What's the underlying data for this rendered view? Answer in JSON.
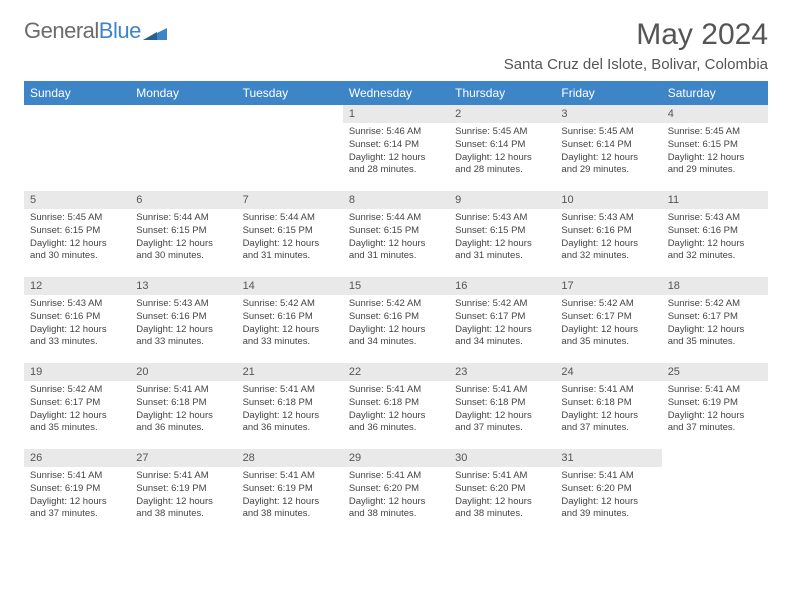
{
  "logo": {
    "text1": "General",
    "text2": "Blue"
  },
  "title": "May 2024",
  "location": "Santa Cruz del Islote, Bolivar, Colombia",
  "dayHeaders": [
    "Sunday",
    "Monday",
    "Tuesday",
    "Wednesday",
    "Thursday",
    "Friday",
    "Saturday"
  ],
  "header_bg": "#3d85c6",
  "header_fg": "#ffffff",
  "daynum_bg": "#e9e9e9",
  "text_color": "#555555",
  "weeks": [
    [
      null,
      null,
      null,
      {
        "n": "1",
        "sr": "5:46 AM",
        "ss": "6:14 PM",
        "dl": "12 hours and 28 minutes."
      },
      {
        "n": "2",
        "sr": "5:45 AM",
        "ss": "6:14 PM",
        "dl": "12 hours and 28 minutes."
      },
      {
        "n": "3",
        "sr": "5:45 AM",
        "ss": "6:14 PM",
        "dl": "12 hours and 29 minutes."
      },
      {
        "n": "4",
        "sr": "5:45 AM",
        "ss": "6:15 PM",
        "dl": "12 hours and 29 minutes."
      }
    ],
    [
      {
        "n": "5",
        "sr": "5:45 AM",
        "ss": "6:15 PM",
        "dl": "12 hours and 30 minutes."
      },
      {
        "n": "6",
        "sr": "5:44 AM",
        "ss": "6:15 PM",
        "dl": "12 hours and 30 minutes."
      },
      {
        "n": "7",
        "sr": "5:44 AM",
        "ss": "6:15 PM",
        "dl": "12 hours and 31 minutes."
      },
      {
        "n": "8",
        "sr": "5:44 AM",
        "ss": "6:15 PM",
        "dl": "12 hours and 31 minutes."
      },
      {
        "n": "9",
        "sr": "5:43 AM",
        "ss": "6:15 PM",
        "dl": "12 hours and 31 minutes."
      },
      {
        "n": "10",
        "sr": "5:43 AM",
        "ss": "6:16 PM",
        "dl": "12 hours and 32 minutes."
      },
      {
        "n": "11",
        "sr": "5:43 AM",
        "ss": "6:16 PM",
        "dl": "12 hours and 32 minutes."
      }
    ],
    [
      {
        "n": "12",
        "sr": "5:43 AM",
        "ss": "6:16 PM",
        "dl": "12 hours and 33 minutes."
      },
      {
        "n": "13",
        "sr": "5:43 AM",
        "ss": "6:16 PM",
        "dl": "12 hours and 33 minutes."
      },
      {
        "n": "14",
        "sr": "5:42 AM",
        "ss": "6:16 PM",
        "dl": "12 hours and 33 minutes."
      },
      {
        "n": "15",
        "sr": "5:42 AM",
        "ss": "6:16 PM",
        "dl": "12 hours and 34 minutes."
      },
      {
        "n": "16",
        "sr": "5:42 AM",
        "ss": "6:17 PM",
        "dl": "12 hours and 34 minutes."
      },
      {
        "n": "17",
        "sr": "5:42 AM",
        "ss": "6:17 PM",
        "dl": "12 hours and 35 minutes."
      },
      {
        "n": "18",
        "sr": "5:42 AM",
        "ss": "6:17 PM",
        "dl": "12 hours and 35 minutes."
      }
    ],
    [
      {
        "n": "19",
        "sr": "5:42 AM",
        "ss": "6:17 PM",
        "dl": "12 hours and 35 minutes."
      },
      {
        "n": "20",
        "sr": "5:41 AM",
        "ss": "6:18 PM",
        "dl": "12 hours and 36 minutes."
      },
      {
        "n": "21",
        "sr": "5:41 AM",
        "ss": "6:18 PM",
        "dl": "12 hours and 36 minutes."
      },
      {
        "n": "22",
        "sr": "5:41 AM",
        "ss": "6:18 PM",
        "dl": "12 hours and 36 minutes."
      },
      {
        "n": "23",
        "sr": "5:41 AM",
        "ss": "6:18 PM",
        "dl": "12 hours and 37 minutes."
      },
      {
        "n": "24",
        "sr": "5:41 AM",
        "ss": "6:18 PM",
        "dl": "12 hours and 37 minutes."
      },
      {
        "n": "25",
        "sr": "5:41 AM",
        "ss": "6:19 PM",
        "dl": "12 hours and 37 minutes."
      }
    ],
    [
      {
        "n": "26",
        "sr": "5:41 AM",
        "ss": "6:19 PM",
        "dl": "12 hours and 37 minutes."
      },
      {
        "n": "27",
        "sr": "5:41 AM",
        "ss": "6:19 PM",
        "dl": "12 hours and 38 minutes."
      },
      {
        "n": "28",
        "sr": "5:41 AM",
        "ss": "6:19 PM",
        "dl": "12 hours and 38 minutes."
      },
      {
        "n": "29",
        "sr": "5:41 AM",
        "ss": "6:20 PM",
        "dl": "12 hours and 38 minutes."
      },
      {
        "n": "30",
        "sr": "5:41 AM",
        "ss": "6:20 PM",
        "dl": "12 hours and 38 minutes."
      },
      {
        "n": "31",
        "sr": "5:41 AM",
        "ss": "6:20 PM",
        "dl": "12 hours and 39 minutes."
      },
      null
    ]
  ],
  "labels": {
    "sunrise": "Sunrise:",
    "sunset": "Sunset:",
    "daylight": "Daylight:"
  }
}
